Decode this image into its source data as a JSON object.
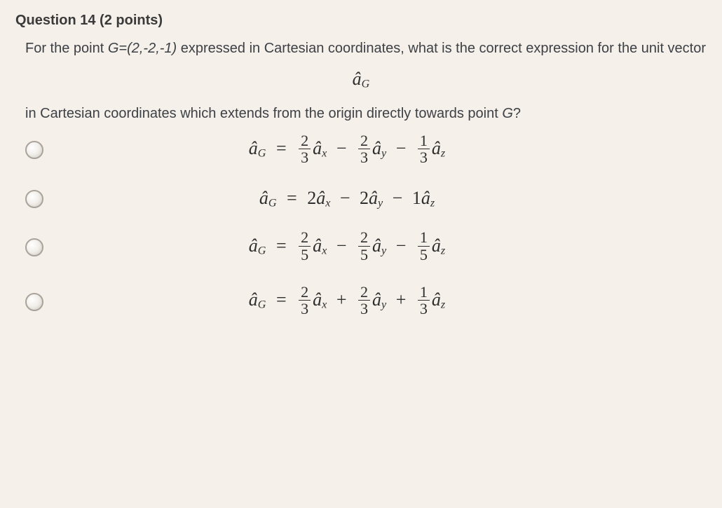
{
  "question": {
    "number_label": "Question 14",
    "points_label": "(2 points)",
    "stem_line1_prefix": "For the point ",
    "point_def": "G=(2,-2,-1)",
    "stem_line1_suffix": " expressed in Cartesian coordinates, what is the correct expression for the unit vector",
    "center_symbol": "âG",
    "stem_line2": "in Cartesian coordinates which extends from the origin directly towards point ",
    "point_name": "G",
    "stem_qmark": "?"
  },
  "math": {
    "lhs_hat": "â",
    "lhs_sub": "G",
    "ax_hat": "â",
    "ax_sub": "x",
    "ay_hat": "â",
    "ay_sub": "y",
    "az_hat": "â",
    "az_sub": "z",
    "eq": "=",
    "minus": "−",
    "plus": "+"
  },
  "options": [
    {
      "id": "opt-a",
      "terms": [
        {
          "num": "2",
          "den": "3",
          "unit": "ax",
          "op_before": null
        },
        {
          "num": "2",
          "den": "3",
          "unit": "ay",
          "op_before": "minus"
        },
        {
          "num": "1",
          "den": "3",
          "unit": "az",
          "op_before": "minus"
        }
      ]
    },
    {
      "id": "opt-b",
      "int_terms": [
        {
          "coef": "2",
          "unit": "ax",
          "op_before": null
        },
        {
          "coef": "2",
          "unit": "ay",
          "op_before": "minus"
        },
        {
          "coef": "1",
          "unit": "az",
          "op_before": "minus"
        }
      ]
    },
    {
      "id": "opt-c",
      "terms": [
        {
          "num": "2",
          "den": "5",
          "unit": "ax",
          "op_before": null
        },
        {
          "num": "2",
          "den": "5",
          "unit": "ay",
          "op_before": "minus"
        },
        {
          "num": "1",
          "den": "5",
          "unit": "az",
          "op_before": "minus"
        }
      ]
    },
    {
      "id": "opt-d",
      "terms": [
        {
          "num": "2",
          "den": "3",
          "unit": "ax",
          "op_before": null
        },
        {
          "num": "2",
          "den": "3",
          "unit": "ay",
          "op_before": "plus"
        },
        {
          "num": "1",
          "den": "3",
          "unit": "az",
          "op_before": "plus"
        }
      ]
    }
  ],
  "style": {
    "background": "#f5f0ea",
    "text_color": "#333333",
    "title_fontsize": 20,
    "body_fontsize": 20,
    "math_fontsize": 26,
    "radio_border": "#a9a39a"
  }
}
